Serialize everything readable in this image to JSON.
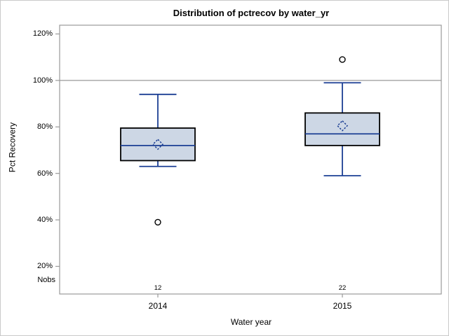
{
  "title": "Distribution of pctrecov by water_yr",
  "y_axis": {
    "label": "Pct Recovery",
    "ticks": [
      "120%",
      "100%",
      "80%",
      "60%",
      "40%",
      "20%"
    ],
    "nobs_label": "Nobs"
  },
  "x_axis": {
    "label": "Water year",
    "categories": [
      "2014",
      "2015"
    ]
  },
  "nobs": [
    "12",
    "22"
  ],
  "colors": {
    "box_fill": "#cdd7e5",
    "box_border": "#000000",
    "line": "#1c3f94",
    "frame": "#9a9a9a",
    "reference_line": "#9a9a9a",
    "outlier_stroke": "#000000"
  },
  "chart_data": {
    "type": "boxplot",
    "title": "Distribution of pctrecov by water_yr",
    "xlabel": "Water year",
    "ylabel": "Pct Recovery",
    "y_tick_values_pct": [
      20,
      40,
      60,
      80,
      100,
      120
    ],
    "y_axis_range_pct": [
      8,
      124
    ],
    "reference_line_pct": 100,
    "grid": false,
    "legend": "none",
    "groups": [
      {
        "category": "2014",
        "nobs": 12,
        "whisker_low": 63,
        "q1": 65.5,
        "median": 72,
        "mean": 72.5,
        "q3": 79.5,
        "whisker_high": 94,
        "outliers": [
          39
        ]
      },
      {
        "category": "2015",
        "nobs": 22,
        "whisker_low": 59,
        "q1": 72,
        "median": 77,
        "mean": 80.5,
        "q3": 86,
        "whisker_high": 99,
        "outliers": [
          109
        ]
      }
    ]
  }
}
